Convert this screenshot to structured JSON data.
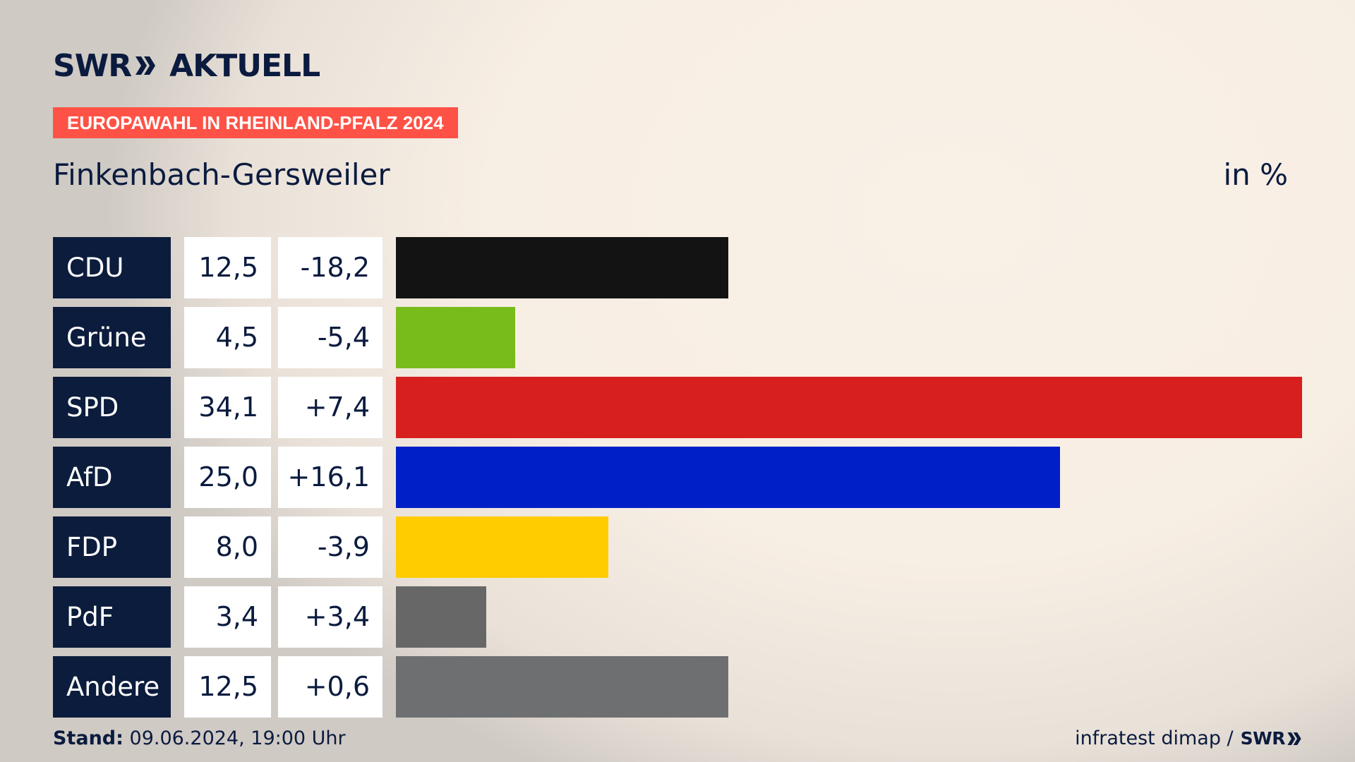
{
  "brand": {
    "name": "SWR",
    "product": "AKTUELL"
  },
  "badge": "EUROPAWAHL IN RHEINLAND-PFALZ 2024",
  "subtitle": "Finkenbach-Gersweiler",
  "unit_label": "in %",
  "footer": {
    "stand_label": "Stand:",
    "stand_value": "09.06.2024, 19:00 Uhr",
    "source": "infratest dimap /",
    "source_brand": "SWR"
  },
  "colors": {
    "badge": "#ff5246",
    "navy": "#0c1c3c",
    "CDU": "#131313",
    "Grüne": "#78bc1b",
    "SPD": "#d71f1d",
    "AfD": "#001fc7",
    "FDP": "#ffcc00",
    "PdF": "#676767",
    "Andere": "#6e6f71"
  },
  "chart_data": {
    "type": "bar",
    "orientation": "horizontal",
    "categories": [
      "CDU",
      "Grüne",
      "SPD",
      "AfD",
      "FDP",
      "PdF",
      "Andere"
    ],
    "values": [
      12.5,
      4.5,
      34.1,
      25.0,
      8.0,
      3.4,
      12.5
    ],
    "value_labels": [
      "12,5",
      "4,5",
      "34,1",
      "25,0",
      "8,0",
      "3,4",
      "12,5"
    ],
    "changes": [
      -18.2,
      -5.4,
      7.4,
      16.1,
      -3.9,
      3.4,
      0.6
    ],
    "change_labels": [
      "-18,2",
      "-5,4",
      "+7,4",
      "+16,1",
      "-3,9",
      "+3,4",
      "+0,6"
    ],
    "colors": [
      "#131313",
      "#78bc1b",
      "#d71f1d",
      "#001fc7",
      "#ffcc00",
      "#676767",
      "#6e6f71"
    ],
    "xlim": [
      0,
      34.1
    ],
    "grid": false,
    "legend": "none"
  }
}
